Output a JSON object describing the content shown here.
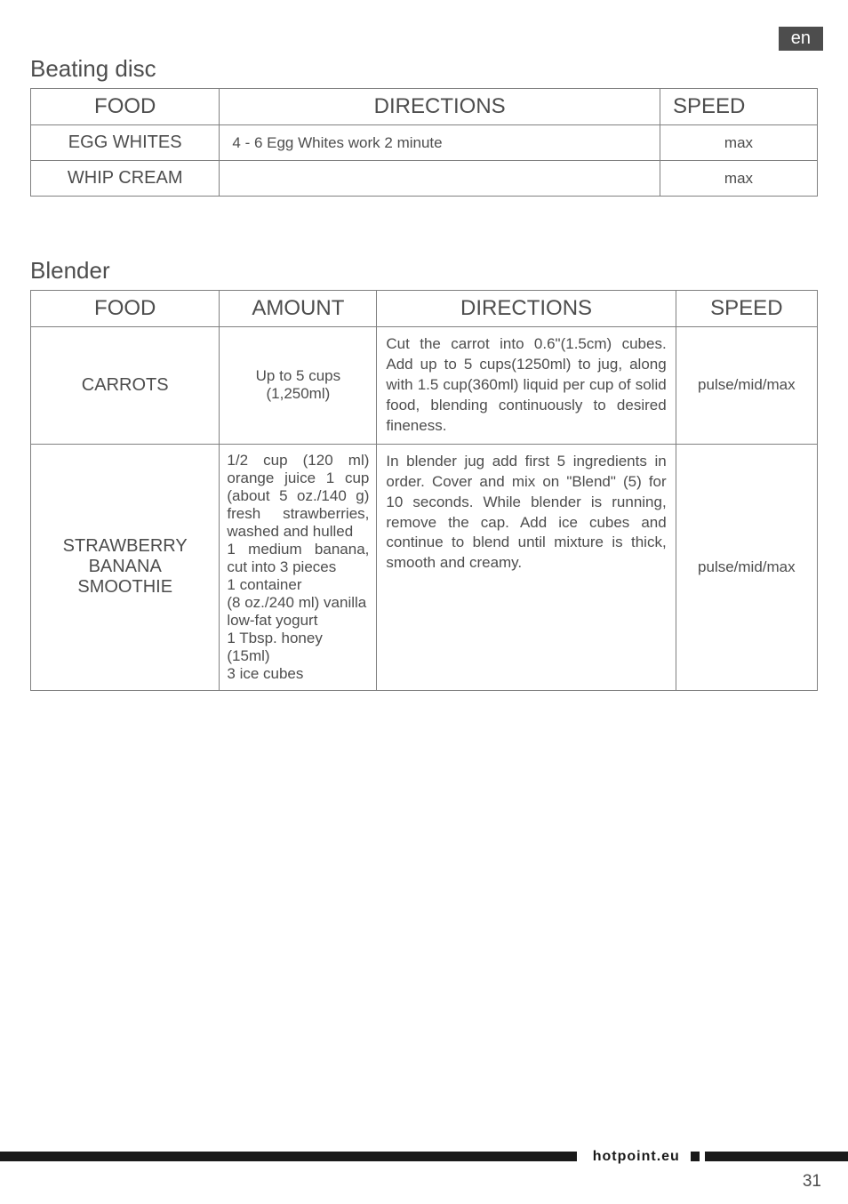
{
  "lang_badge": "en",
  "section1": {
    "title": "Beating disc",
    "headers": {
      "food": "FOOD",
      "directions": "DIRECTIONS",
      "speed": "SPEED"
    },
    "rows": [
      {
        "food": "EGG WHITES",
        "directions": "4 - 6 Egg Whites work 2 minute",
        "speed": "max"
      },
      {
        "food": "WHIP CREAM",
        "directions": "",
        "speed": "max"
      }
    ]
  },
  "section2": {
    "title": "Blender",
    "headers": {
      "food": "FOOD",
      "amount": "AMOUNT",
      "directions": "DIRECTIONS",
      "speed": "SPEED"
    },
    "rows": [
      {
        "food": "CARROTS",
        "amount_l1": "Up to 5 cups",
        "amount_l2": "(1,250ml)",
        "directions": "Cut the carrot into 0.6\"(1.5cm) cubes. Add up to 5 cups(1250ml) to jug, along with 1.5 cup(360ml) liquid per cup of solid food, blending continuously to desired fineness.",
        "speed": "pulse/mid/max"
      },
      {
        "food_l1": "STRAWBERRY",
        "food_l2": "BANANA",
        "food_l3": "SMOOTHIE",
        "amount_l1": "1/2 cup (120 ml)",
        "amount_l2": "orange juice 1 cup",
        "amount_l3": "(about 5 oz./140 g)",
        "amount_l4": "fresh strawberries,",
        "amount_l5": "washed and hulled",
        "amount_l6": "1 medium banana,",
        "amount_l7": "cut into 3 pieces",
        "amount_l8": "1 container",
        "amount_l9": "(8 oz./240 ml) vanilla",
        "amount_l10": "low-fat yogurt",
        "amount_l11": "1 Tbsp. honey",
        "amount_l12": "(15ml)",
        "amount_l13": "3 ice cubes",
        "directions": "In blender jug add first 5 ingredients in order. Cover and mix on \"Blend\" (5) for 10 seconds. While blender is running, remove the cap. Add ice cubes and continue to blend until mixture is thick, smooth and creamy.",
        "speed": "pulse/mid/max"
      }
    ]
  },
  "footer_brand": "hotpoint.eu",
  "page_number": "31"
}
